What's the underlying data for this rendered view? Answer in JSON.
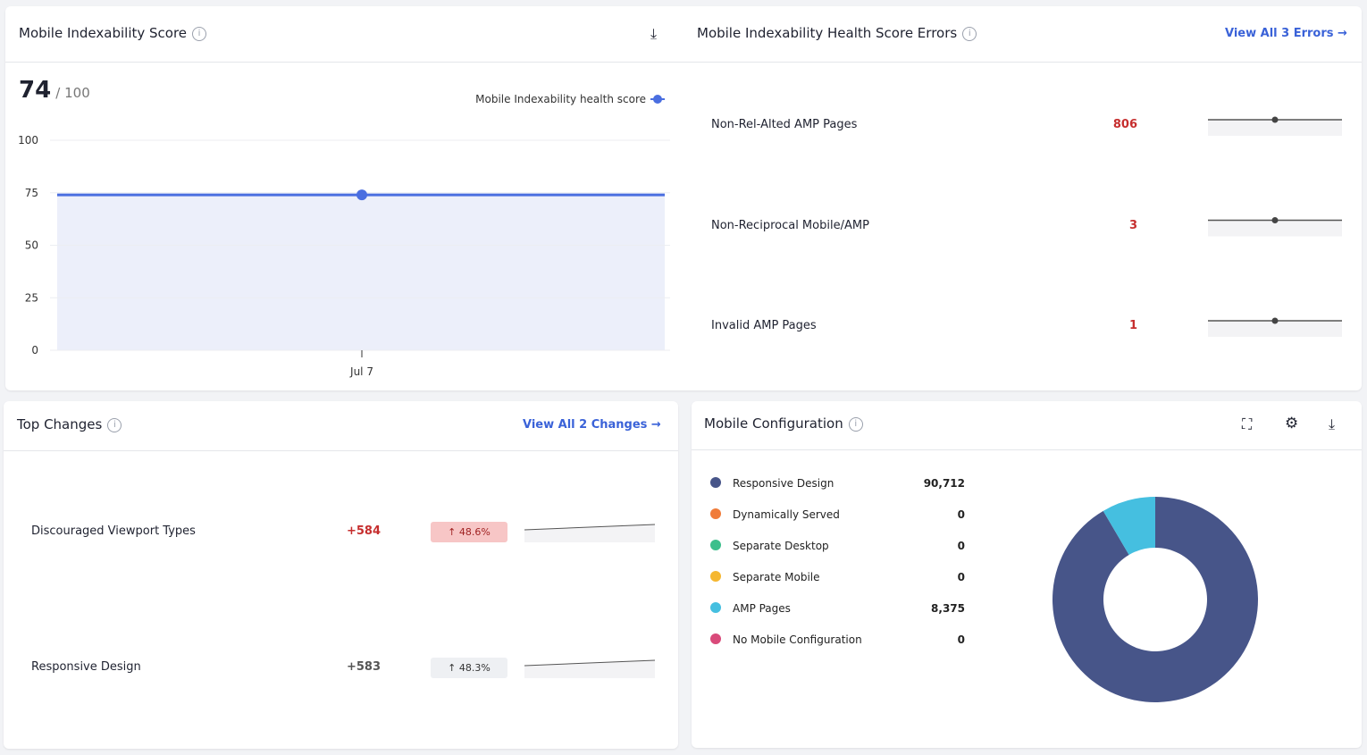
{
  "score_panel": {
    "title": "Mobile Indexability Score",
    "score": "74",
    "score_max": "/ 100",
    "chart": {
      "type": "line",
      "categories": [
        "Jul 7"
      ],
      "series": [
        {
          "name": "Mobile Indexability health score",
          "color": "#4a6ee0",
          "values": [
            74
          ]
        }
      ],
      "ylim": [
        0,
        100
      ],
      "yticks": [
        0,
        25,
        50,
        75,
        100
      ],
      "grid": true,
      "area_color": "#eceffa"
    }
  },
  "errors_panel": {
    "title": "Mobile Indexability Health Score Errors",
    "link": "View All 3 Errors",
    "rows": [
      {
        "label": "Non-Rel-Alted AMP Pages",
        "value": "806"
      },
      {
        "label": "Non-Reciprocal Mobile/AMP",
        "value": "3"
      },
      {
        "label": "Invalid AMP Pages",
        "value": "1"
      }
    ]
  },
  "changes_panel": {
    "title": "Top Changes",
    "link": "View All 2 Changes",
    "rows": [
      {
        "label": "Discouraged Viewport Types",
        "change": "+584",
        "percent": "↑ 48.6%",
        "highlight": true
      },
      {
        "label": "Responsive Design",
        "change": "+583",
        "percent": "↑ 48.3%",
        "highlight": false
      }
    ]
  },
  "config_panel": {
    "title": "Mobile Configuration",
    "chart": {
      "type": "pie",
      "categories": [
        "Responsive Design",
        "Dynamically Served",
        "Separate Desktop",
        "Separate Mobile",
        "AMP Pages",
        "No Mobile Configuration"
      ],
      "values": [
        90712,
        0,
        0,
        0,
        8375,
        0
      ],
      "value_labels": [
        "90,712",
        "0",
        "0",
        "0",
        "8,375",
        "0"
      ],
      "colors": [
        "#475589",
        "#f07c3a",
        "#3dbf8c",
        "#f5b731",
        "#45bfe0",
        "#d94a7a"
      ],
      "donut": true
    }
  }
}
